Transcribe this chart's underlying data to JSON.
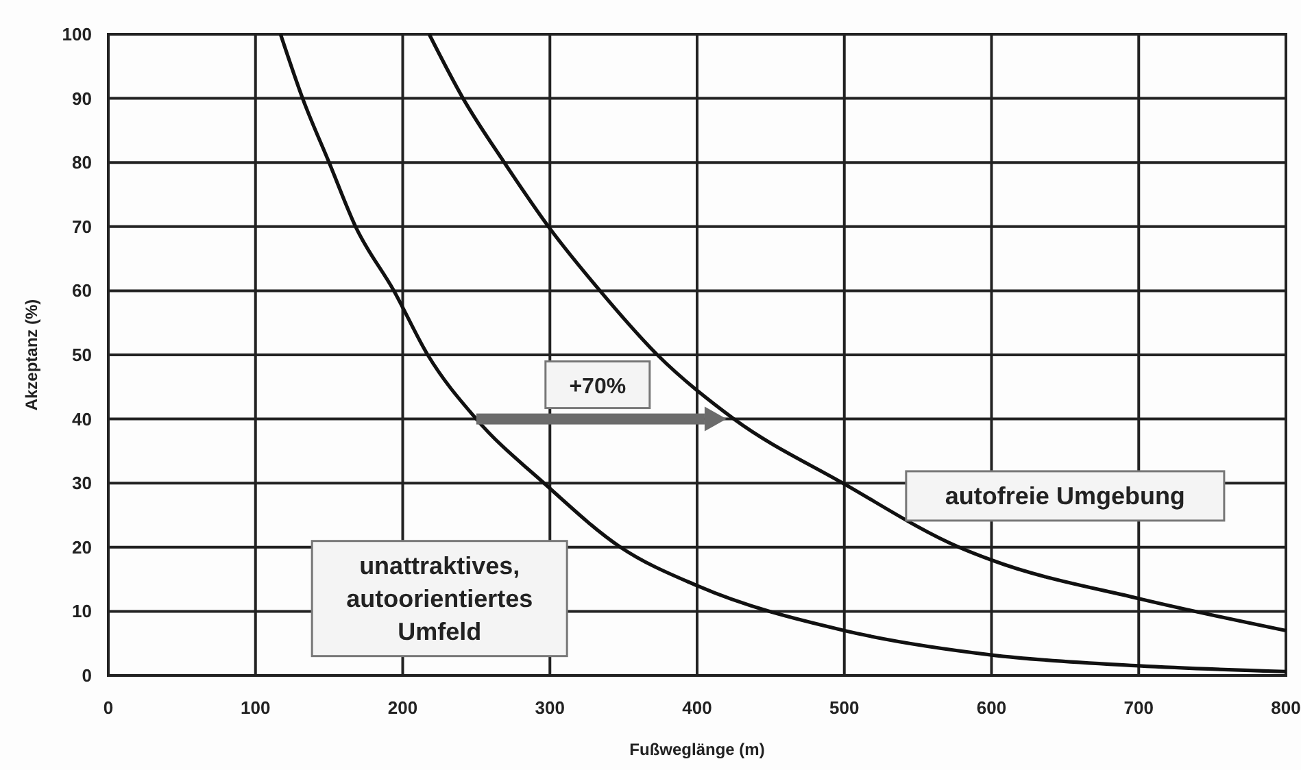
{
  "chart_data": {
    "type": "line",
    "xlabel": "Fußweglänge (m)",
    "ylabel": "Akzeptanz (%)",
    "xlim": [
      0,
      800
    ],
    "xticks": [
      0,
      100,
      200,
      300,
      400,
      500,
      600,
      700,
      800
    ],
    "ylim": [
      0,
      100
    ],
    "yticks": [
      0,
      10,
      20,
      30,
      40,
      50,
      60,
      70,
      80,
      90,
      100
    ],
    "grid": true,
    "marker": "none",
    "line_style": "solid",
    "series": [
      {
        "name": "unattraktives, autoorientiertes Umfeld",
        "color": "#111111",
        "x": [
          117,
          132,
          150,
          168,
          194,
          217,
          250,
          296,
          348,
          400,
          500,
          600,
          700,
          800
        ],
        "values": [
          100,
          90,
          80,
          70,
          60,
          50,
          40,
          30,
          20,
          14,
          7,
          3.2,
          1.5,
          0.6
        ]
      },
      {
        "name": "autofreie Umgebung",
        "color": "#111111",
        "x": [
          218,
          241,
          269,
          299,
          334,
          373,
          425,
          499,
          578,
          600,
          700,
          800
        ],
        "values": [
          100,
          90,
          80,
          70,
          60,
          50,
          40,
          30,
          20,
          18,
          12,
          7
        ]
      }
    ],
    "annotations": [
      "+70%"
    ]
  }
}
